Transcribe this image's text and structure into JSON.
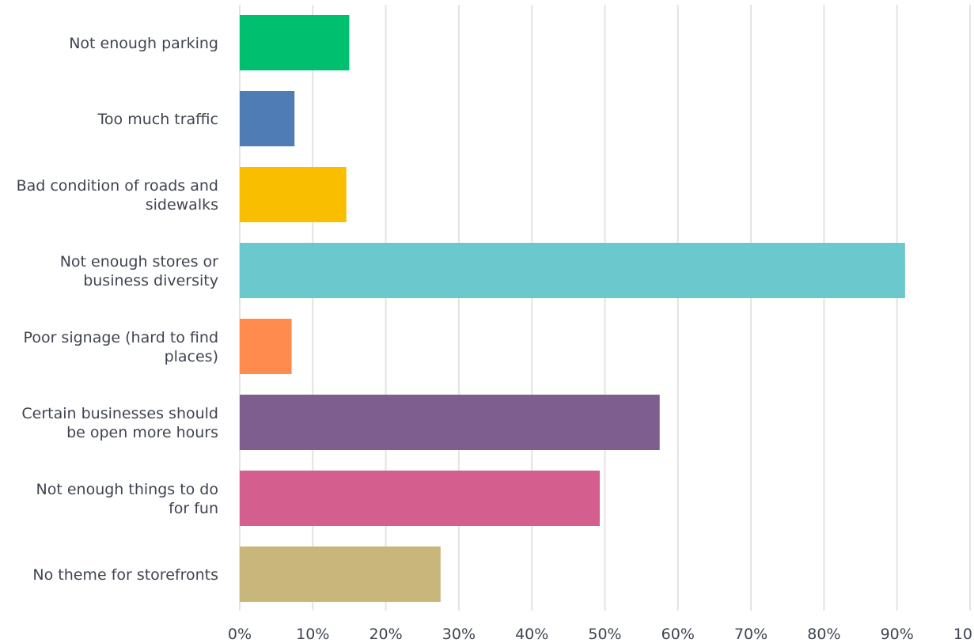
{
  "chart_data": {
    "type": "bar",
    "orientation": "horizontal",
    "categories": [
      "Not enough parking",
      "Too much traffic",
      "Bad condition of roads and sidewalks",
      "Not enough stores or business diversity",
      "Poor signage (hard to find places)",
      "Certain businesses should be open more hours",
      "Not enough things to do for fun",
      "No theme for storefronts"
    ],
    "category_lines": [
      [
        "Not enough parking"
      ],
      [
        "Too much traffic"
      ],
      [
        "Bad condition of roads and",
        "sidewalks"
      ],
      [
        "Not enough stores or",
        "business diversity"
      ],
      [
        "Poor signage (hard to find",
        "places)"
      ],
      [
        "Certain businesses should",
        "be open more hours"
      ],
      [
        "Not enough things to do",
        "for fun"
      ],
      [
        "No theme for storefronts"
      ]
    ],
    "values": [
      15.0,
      7.5,
      14.6,
      91.1,
      7.1,
      57.5,
      49.3,
      27.5
    ],
    "colors": [
      "#00bf6f",
      "#507cb6",
      "#f9be00",
      "#6bc8cd",
      "#ff8b4f",
      "#7d5e8f",
      "#d45f8f",
      "#c8b67b"
    ],
    "xlim": [
      0,
      100
    ],
    "x_ticks": [
      "0%",
      "10%",
      "20%",
      "30%",
      "40%",
      "50%",
      "60%",
      "70%",
      "80%",
      "90%",
      "10..."
    ],
    "title": "",
    "xlabel": "",
    "ylabel": "",
    "grid": "vertical"
  }
}
